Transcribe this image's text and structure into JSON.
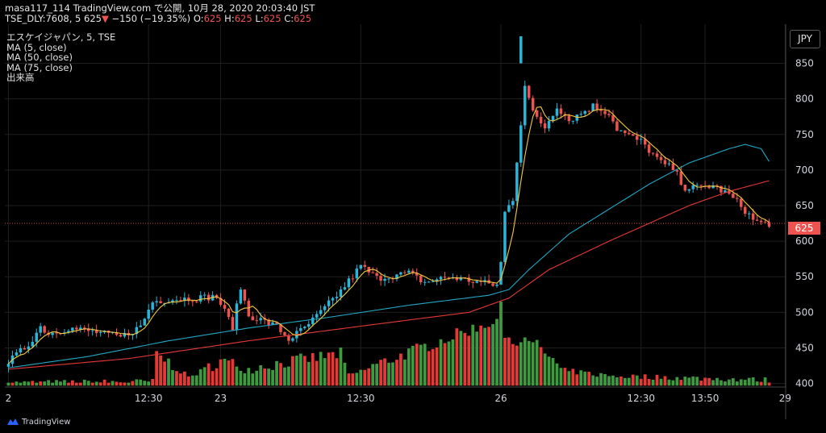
{
  "header": {
    "line1": "masa117_114 TradingView.com で公開, 10月 28, 2020 20:03:40 JST",
    "symbol": "TSE_DLY:7608, 5",
    "last": "625",
    "arrow": "▼",
    "change": "−150 (−19.35%)",
    "o_label": "O:",
    "o": "625",
    "h_label": "H:",
    "h": "625",
    "l_label": "L:",
    "l": "625",
    "c_label": "C:",
    "c": "625"
  },
  "legend": [
    "エスケイジャパン, 5, TSE",
    "MA (5, close)",
    "MA (50, close)",
    "MA (75, close)",
    "出来高"
  ],
  "currency_button": "JPY",
  "last_price_tag": "625",
  "footer_brand": "TradingView",
  "colors": {
    "up": "#26a69a",
    "up_candle": "#29b6d8",
    "down": "#ef5350",
    "ma5": "#f5c842",
    "ma50": "#22a7c4",
    "ma75": "#e53935",
    "vol_up": "#3d9a3f",
    "vol_down": "#e53935",
    "grid": "#1e1e1e"
  },
  "chart_data": {
    "type": "candlestick",
    "title": "エスケイジャパン, 5, TSE",
    "currency": "JPY",
    "ylim": [
      395,
      905
    ],
    "y_ticks": [
      400,
      450,
      500,
      550,
      600,
      650,
      700,
      750,
      800,
      850
    ],
    "x_ticks": [
      {
        "label": "2",
        "i": 0
      },
      {
        "label": "12:30",
        "i": 35
      },
      {
        "label": "23",
        "i": 53
      },
      {
        "label": "12:30",
        "i": 88
      },
      {
        "label": "26",
        "i": 123
      },
      {
        "label": "12:30",
        "i": 158
      },
      {
        "label": "13:50",
        "i": 174
      },
      {
        "label": "29",
        "i": 194
      }
    ],
    "n_bars": 191,
    "anchors_close": [
      [
        0,
        430
      ],
      [
        5,
        455
      ],
      [
        8,
        480
      ],
      [
        10,
        470
      ],
      [
        15,
        478
      ],
      [
        22,
        472
      ],
      [
        28,
        465
      ],
      [
        33,
        480
      ],
      [
        36,
        515
      ],
      [
        40,
        518
      ],
      [
        46,
        520
      ],
      [
        52,
        522
      ],
      [
        56,
        480
      ],
      [
        58,
        535
      ],
      [
        60,
        495
      ],
      [
        62,
        492
      ],
      [
        67,
        480
      ],
      [
        70,
        462
      ],
      [
        74,
        478
      ],
      [
        78,
        500
      ],
      [
        83,
        530
      ],
      [
        88,
        565
      ],
      [
        92,
        548
      ],
      [
        100,
        555
      ],
      [
        104,
        542
      ],
      [
        110,
        550
      ],
      [
        115,
        545
      ],
      [
        122,
        538
      ],
      [
        123,
        570
      ],
      [
        124,
        640
      ],
      [
        126,
        660
      ],
      [
        129,
        820
      ],
      [
        131,
        780
      ],
      [
        134,
        760
      ],
      [
        137,
        790
      ],
      [
        140,
        770
      ],
      [
        143,
        780
      ],
      [
        146,
        790
      ],
      [
        150,
        780
      ],
      [
        152,
        758
      ],
      [
        155,
        748
      ],
      [
        158,
        740
      ],
      [
        163,
        710
      ],
      [
        166,
        702
      ],
      [
        169,
        675
      ],
      [
        172,
        675
      ],
      [
        176,
        678
      ],
      [
        180,
        665
      ],
      [
        183,
        650
      ],
      [
        186,
        630
      ],
      [
        188,
        625
      ],
      [
        190,
        625
      ]
    ],
    "anchors_ma50": [
      [
        0,
        422
      ],
      [
        20,
        438
      ],
      [
        40,
        460
      ],
      [
        60,
        478
      ],
      [
        80,
        493
      ],
      [
        100,
        510
      ],
      [
        120,
        524
      ],
      [
        125,
        532
      ],
      [
        130,
        560
      ],
      [
        140,
        610
      ],
      [
        150,
        645
      ],
      [
        160,
        680
      ],
      [
        170,
        710
      ],
      [
        180,
        730
      ],
      [
        184,
        736
      ],
      [
        188,
        730
      ],
      [
        190,
        712
      ]
    ],
    "anchors_ma75": [
      [
        0,
        420
      ],
      [
        30,
        435
      ],
      [
        60,
        460
      ],
      [
        90,
        482
      ],
      [
        115,
        500
      ],
      [
        125,
        520
      ],
      [
        135,
        560
      ],
      [
        150,
        600
      ],
      [
        160,
        625
      ],
      [
        170,
        650
      ],
      [
        180,
        670
      ],
      [
        190,
        685
      ]
    ],
    "anchors_volume": [
      [
        0,
        400
      ],
      [
        36,
        402
      ],
      [
        37,
        440
      ],
      [
        45,
        408
      ],
      [
        53,
        430
      ],
      [
        60,
        420
      ],
      [
        83,
        440
      ],
      [
        85,
        410
      ],
      [
        123,
        490
      ],
      [
        124,
        470
      ],
      [
        128,
        455
      ],
      [
        129,
        458
      ],
      [
        131,
        460
      ],
      [
        133,
        448
      ],
      [
        138,
        418
      ],
      [
        150,
        410
      ],
      [
        190,
        404
      ]
    ]
  }
}
